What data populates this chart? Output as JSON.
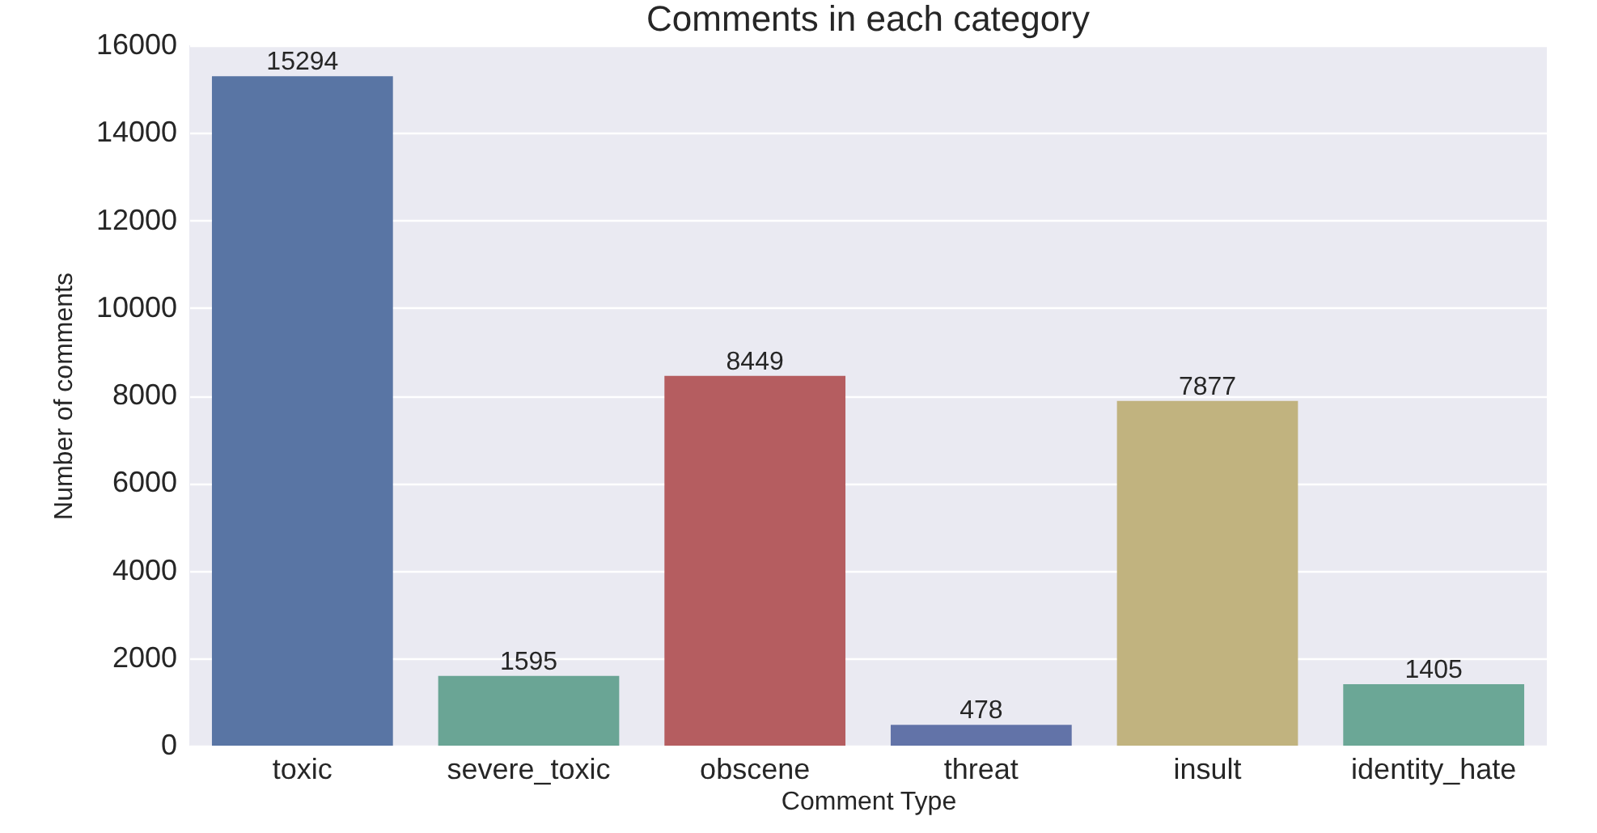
{
  "chart_data": {
    "type": "bar",
    "title": "Comments in each category",
    "xlabel": "Comment Type",
    "ylabel": "Number of comments",
    "categories": [
      "toxic",
      "severe_toxic",
      "obscene",
      "threat",
      "insult",
      "identity_hate"
    ],
    "values": [
      15294,
      1595,
      8449,
      478,
      7877,
      1405
    ],
    "colors": [
      "#5975a4",
      "#6aa595",
      "#b55d60",
      "#6273a8",
      "#c1b37f",
      "#6ba796"
    ],
    "ylim": [
      0,
      16000
    ],
    "yticks": [
      0,
      2000,
      4000,
      6000,
      8000,
      10000,
      12000,
      14000,
      16000
    ],
    "grid": "y",
    "data_labels": true
  }
}
